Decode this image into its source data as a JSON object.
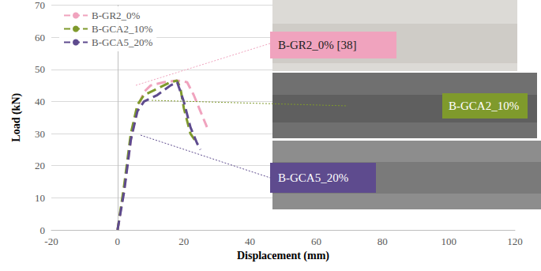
{
  "chart_data": {
    "type": "line",
    "xlabel": "Displacement (mm)",
    "ylabel": "Load (kN)",
    "xlim": [
      -20,
      120
    ],
    "xticks": [
      -20,
      0,
      20,
      40,
      60,
      80,
      100,
      120
    ],
    "ylim": [
      0,
      70
    ],
    "yticks": [
      0,
      10,
      20,
      30,
      40,
      50,
      60,
      70
    ],
    "grid": true,
    "legend": "upper left",
    "marker": "none",
    "line_style": "dashed",
    "series": [
      {
        "name": "B-GR2_0%",
        "color": "#f0a3be",
        "x": [
          0,
          2,
          4,
          6,
          8,
          10,
          14,
          18,
          21,
          23,
          25,
          27
        ],
        "values": [
          0,
          13,
          28,
          38,
          43,
          45,
          46,
          46.5,
          46,
          42,
          37,
          32
        ]
      },
      {
        "name": "B-GCA2_10%",
        "color": "#7f9a2c",
        "x": [
          0,
          2,
          4,
          6,
          8,
          12,
          16,
          18,
          19,
          20,
          22,
          24
        ],
        "values": [
          0,
          14,
          30,
          39,
          42,
          44,
          46,
          46.5,
          44,
          38,
          30,
          27
        ]
      },
      {
        "name": "B-GCA5_20%",
        "color": "#5e4b8e",
        "x": [
          0,
          2,
          4,
          6,
          8,
          12,
          16,
          18,
          20,
          22,
          24,
          25
        ],
        "values": [
          0,
          12,
          28,
          37,
          40,
          42,
          45,
          46,
          40,
          32,
          27,
          25
        ]
      }
    ],
    "annotations": [
      {
        "text": "B-GR2_0% [38]",
        "color": "#f0a3be"
      },
      {
        "text": "B-GCA2_10%",
        "color": "#7f9a2c"
      },
      {
        "text": "B-GCA5_20%",
        "color": "#5e4b8e"
      }
    ]
  }
}
